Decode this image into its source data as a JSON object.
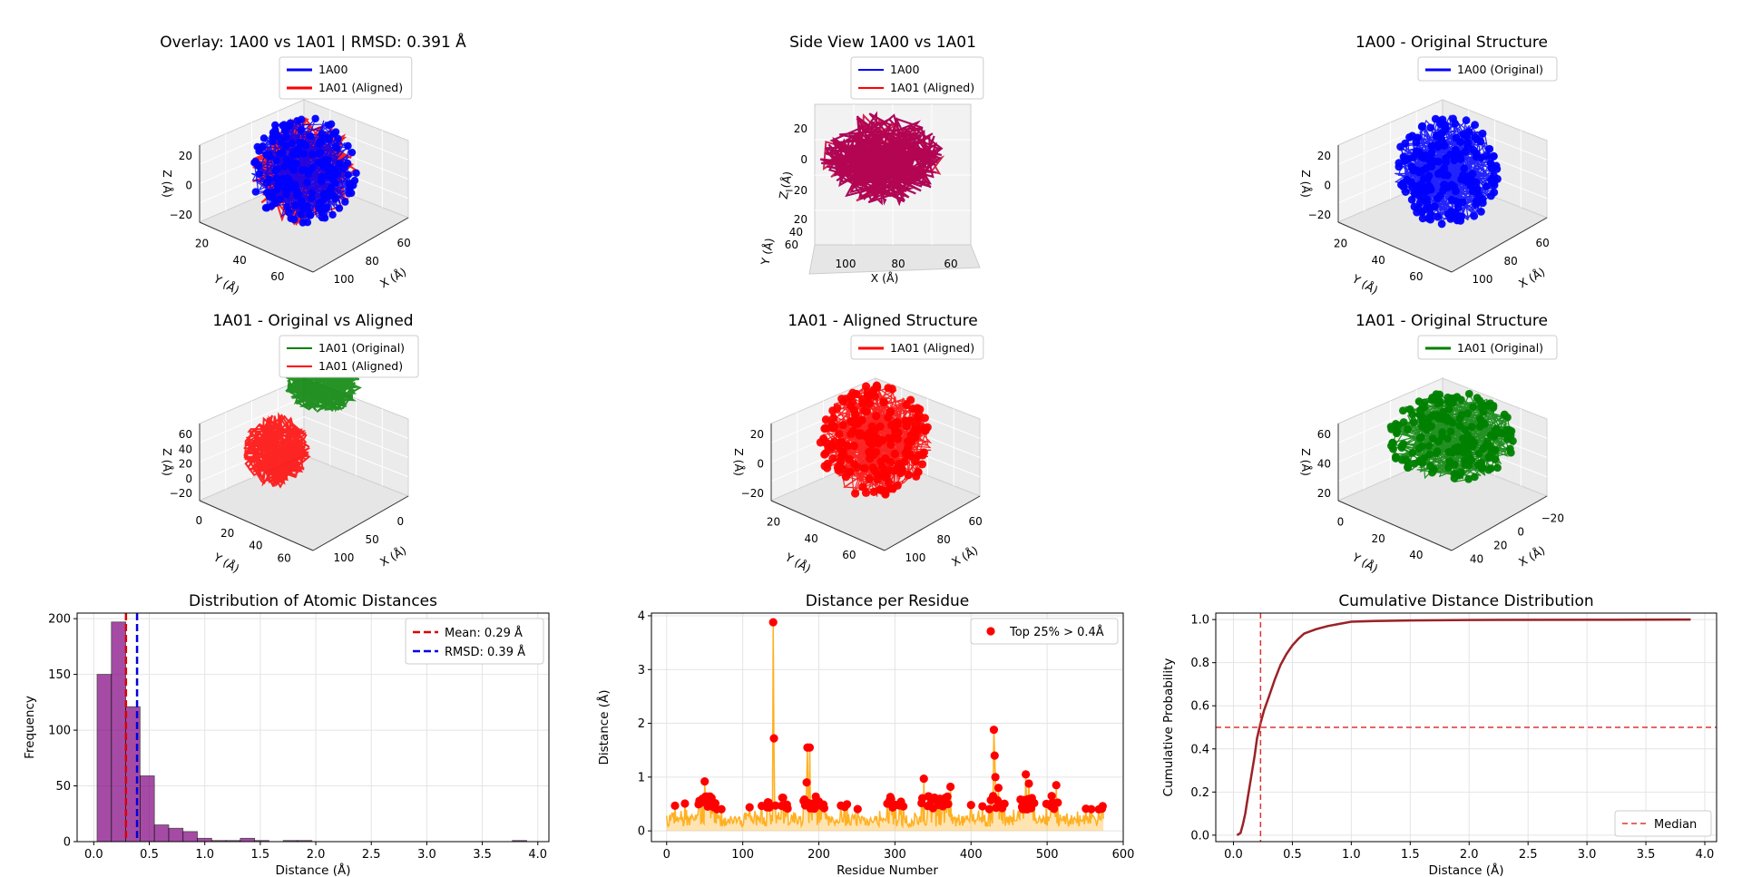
{
  "panels": {
    "overlay": {
      "title": "Overlay: 1A00 vs 1A01 | RMSD: 0.391 Å",
      "legend": [
        "1A00",
        "1A01 (Aligned)"
      ],
      "zlabel": "Z (Å)",
      "ylabel": "Y (Å)",
      "xlabel": "X (Å)",
      "zticks": [
        "20",
        "0",
        "−20"
      ],
      "yticks": [
        "20",
        "40",
        "60"
      ],
      "xticks": [
        "100",
        "80",
        "60"
      ]
    },
    "side": {
      "title": "Side View 1A00 vs 1A01",
      "legend": [
        "1A00",
        "1A01 (Aligned)"
      ],
      "zlabel": "Z (Å)",
      "ylabel": "Y (Å)",
      "xlabel": "X (Å)",
      "zticks": [
        "20",
        "0",
        "−20"
      ],
      "yticks": [
        "20",
        "40",
        "60"
      ],
      "xticks": [
        "100",
        "80",
        "60"
      ]
    },
    "orig1a00": {
      "title": "1A00 - Original Structure",
      "legend": [
        "1A00 (Original)"
      ],
      "zlabel": "Z (Å)",
      "ylabel": "Y (Å)",
      "xlabel": "X (Å)",
      "zticks": [
        "20",
        "0",
        "−20"
      ],
      "yticks": [
        "20",
        "40",
        "60"
      ],
      "xticks": [
        "100",
        "80",
        "60"
      ]
    },
    "origvsal": {
      "title": "1A01 - Original vs Aligned",
      "legend": [
        "1A01 (Original)",
        "1A01 (Aligned)"
      ],
      "zlabel": "Z (Å)",
      "ylabel": "Y (Å)",
      "xlabel": "X (Å)",
      "zticks": [
        "60",
        "40",
        "20",
        "0",
        "−20"
      ],
      "yticks": [
        "0",
        "20",
        "40",
        "60"
      ],
      "xticks": [
        "100",
        "50",
        "0"
      ]
    },
    "aligned": {
      "title": "1A01 - Aligned Structure",
      "legend": [
        "1A01 (Aligned)"
      ],
      "zlabel": "Z (Å)",
      "ylabel": "Y (Å)",
      "xlabel": "X (Å)",
      "zticks": [
        "20",
        "0",
        "−20"
      ],
      "yticks": [
        "20",
        "40",
        "60"
      ],
      "xticks": [
        "100",
        "80",
        "60"
      ]
    },
    "orig1a01": {
      "title": "1A01 - Original Structure",
      "legend": [
        "1A01 (Original)"
      ],
      "zlabel": "Z (Å)",
      "ylabel": "Y (Å)",
      "xlabel": "X (Å)",
      "zticks": [
        "60",
        "40",
        "20"
      ],
      "yticks": [
        "0",
        "20",
        "40"
      ],
      "xticks": [
        "40",
        "20",
        "0",
        "−20"
      ]
    }
  },
  "colors": {
    "a00": "#0000ff",
    "a01_aligned": "#ff0000",
    "a01_original": "#008000",
    "hist": "#800080",
    "line": "#ffa500",
    "cdf": "#9b2226"
  },
  "chart_data": [
    {
      "type": "bar",
      "title": "Distribution of Atomic Distances",
      "xlabel": "Distance (Å)",
      "ylabel": "Frequency",
      "xlim": [
        -0.15,
        4.1
      ],
      "ylim": [
        0,
        205
      ],
      "xticks": [
        0.0,
        0.5,
        1.0,
        1.5,
        2.0,
        2.5,
        3.0,
        3.5,
        4.0
      ],
      "xtick_labels": [
        "0.0",
        "0.5",
        "1.0",
        "1.5",
        "2.0",
        "2.5",
        "3.0",
        "3.5",
        "4.0"
      ],
      "yticks": [
        0,
        50,
        100,
        150,
        200
      ],
      "ytick_labels": [
        "0",
        "50",
        "100",
        "150",
        "200"
      ],
      "bin_width": 0.129,
      "bin_starts": [
        0.03,
        0.159,
        0.288,
        0.417,
        0.546,
        0.675,
        0.804,
        0.933,
        1.062,
        1.191,
        1.32,
        1.449,
        1.578,
        1.707,
        1.836,
        1.965,
        2.094,
        2.223,
        2.352,
        2.481,
        2.61,
        2.739,
        2.868,
        2.997,
        3.126,
        3.255,
        3.384,
        3.513,
        3.642,
        3.771
      ],
      "values": [
        150,
        197,
        121,
        59,
        15,
        12,
        9,
        3,
        1,
        1,
        3,
        1,
        0,
        1,
        1,
        0,
        0,
        0,
        0,
        0,
        0,
        0,
        0,
        0,
        0,
        0,
        0,
        0,
        0,
        1
      ],
      "vlines": [
        {
          "name": "Mean: 0.29 Å",
          "x": 0.29,
          "color": "#dd0000"
        },
        {
          "name": "RMSD: 0.39 Å",
          "x": 0.39,
          "color": "#0000dd"
        }
      ],
      "legend_position": "top-right"
    },
    {
      "type": "line",
      "title": "Distance per Residue",
      "xlabel": "Residue Number",
      "ylabel": "Distance (Å)",
      "xlim": [
        -20,
        600
      ],
      "ylim": [
        -0.2,
        4.05
      ],
      "xticks": [
        0,
        100,
        200,
        300,
        400,
        500,
        600
      ],
      "xtick_labels": [
        "0",
        "100",
        "200",
        "300",
        "400",
        "500",
        "600"
      ],
      "yticks": [
        0,
        1,
        2,
        3,
        4
      ],
      "ytick_labels": [
        "0",
        "1",
        "2",
        "3",
        "4"
      ],
      "n_residues": 575,
      "spikes": [
        {
          "x": 140,
          "y": 3.88
        },
        {
          "x": 141,
          "y": 1.72
        },
        {
          "x": 184,
          "y": 0.9
        },
        {
          "x": 185,
          "y": 1.55
        },
        {
          "x": 188,
          "y": 1.55
        },
        {
          "x": 430,
          "y": 1.88
        },
        {
          "x": 431,
          "y": 1.4
        },
        {
          "x": 432,
          "y": 1.0
        },
        {
          "x": 436,
          "y": 0.8
        },
        {
          "x": 472,
          "y": 1.05
        },
        {
          "x": 476,
          "y": 0.88
        },
        {
          "x": 50,
          "y": 0.92
        },
        {
          "x": 338,
          "y": 0.97
        },
        {
          "x": 373,
          "y": 0.82
        },
        {
          "x": 512,
          "y": 0.85
        }
      ],
      "highlight_name": "Top 25% > 0.4Å",
      "highlight_threshold": 0.4,
      "legend_position": "top-right"
    },
    {
      "type": "line",
      "title": "Cumulative Distance Distribution",
      "xlabel": "Distance (Å)",
      "ylabel": "Cumulative Probability",
      "xlim": [
        -0.15,
        4.1
      ],
      "ylim": [
        -0.03,
        1.03
      ],
      "xticks": [
        0.0,
        0.5,
        1.0,
        1.5,
        2.0,
        2.5,
        3.0,
        3.5,
        4.0
      ],
      "xtick_labels": [
        "0.0",
        "0.5",
        "1.0",
        "1.5",
        "2.0",
        "2.5",
        "3.0",
        "3.5",
        "4.0"
      ],
      "yticks": [
        0.0,
        0.2,
        0.4,
        0.6,
        0.8,
        1.0
      ],
      "ytick_labels": [
        "0.0",
        "0.2",
        "0.4",
        "0.6",
        "0.8",
        "1.0"
      ],
      "x": [
        0.03,
        0.06,
        0.08,
        0.1,
        0.12,
        0.15,
        0.18,
        0.2,
        0.23,
        0.26,
        0.3,
        0.35,
        0.4,
        0.45,
        0.5,
        0.55,
        0.6,
        0.7,
        0.8,
        0.9,
        1.0,
        1.2,
        1.5,
        2.0,
        3.0,
        3.88
      ],
      "y": [
        0.0,
        0.01,
        0.05,
        0.1,
        0.17,
        0.27,
        0.37,
        0.45,
        0.52,
        0.58,
        0.64,
        0.72,
        0.79,
        0.84,
        0.88,
        0.91,
        0.935,
        0.955,
        0.97,
        0.98,
        0.99,
        0.993,
        0.996,
        0.998,
        0.999,
        1.0
      ],
      "hline": 0.5,
      "vline": 0.23,
      "median_label": "Median",
      "legend_position": "bottom-right"
    }
  ]
}
